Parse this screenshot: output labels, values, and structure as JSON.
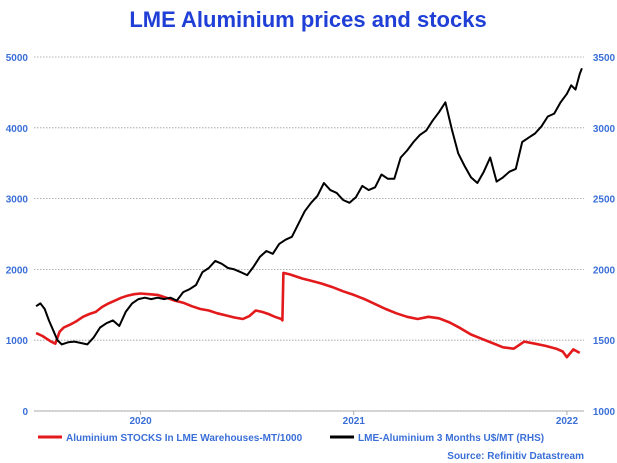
{
  "colors": {
    "title": "#1f3fd6",
    "axis_text": "#3a6fd8",
    "stocks": "#e31a1c",
    "price": "#000000",
    "grid": "#9a9a9a",
    "background": "#ffffff"
  },
  "chart_data": {
    "type": "line",
    "title": "LME Aluminium prices and stocks",
    "source": "Source: Refinitiv Datastream",
    "xlabel": "",
    "x_ticks": [
      {
        "label": "2020",
        "value": 2020.0
      },
      {
        "label": "2021",
        "value": 2021.0
      },
      {
        "label": "2022",
        "value": 2022.0
      }
    ],
    "xlim": [
      2019.5,
      2022.08
    ],
    "left_axis": {
      "label": "",
      "ylim": [
        0,
        5000
      ],
      "ticks": [
        0,
        1000,
        2000,
        3000,
        4000,
        5000
      ]
    },
    "right_axis": {
      "label": "",
      "ylim": [
        1000,
        3500
      ],
      "ticks": [
        1000,
        1500,
        2000,
        2500,
        3000,
        3500
      ]
    },
    "grid": true,
    "legend_position": "bottom",
    "series": [
      {
        "name": "Aluminium STOCKS In LME Warehouses-MT/1000",
        "axis": "left",
        "color": "#e31a1c",
        "x": [
          2019.51,
          2019.54,
          2019.56,
          2019.58,
          2019.6,
          2019.62,
          2019.64,
          2019.67,
          2019.7,
          2019.73,
          2019.76,
          2019.79,
          2019.82,
          2019.85,
          2019.88,
          2019.91,
          2019.94,
          2019.97,
          2020.0,
          2020.04,
          2020.08,
          2020.12,
          2020.16,
          2020.2,
          2020.24,
          2020.28,
          2020.32,
          2020.36,
          2020.4,
          2020.44,
          2020.48,
          2020.51,
          2020.54,
          2020.57,
          2020.6,
          2020.63,
          2020.66,
          2020.665,
          2020.67,
          2020.7,
          2020.73,
          2020.76,
          2020.8,
          2020.85,
          2020.9,
          2020.95,
          2021.0,
          2021.05,
          2021.1,
          2021.15,
          2021.2,
          2021.25,
          2021.3,
          2021.35,
          2021.4,
          2021.45,
          2021.5,
          2021.55,
          2021.6,
          2021.65,
          2021.7,
          2021.75,
          2021.8,
          2021.85,
          2021.9,
          2021.95,
          2021.98,
          2022.0,
          2022.03,
          2022.06
        ],
        "values": [
          1100,
          1060,
          1020,
          980,
          950,
          1120,
          1180,
          1220,
          1270,
          1330,
          1370,
          1400,
          1470,
          1520,
          1560,
          1600,
          1630,
          1650,
          1660,
          1650,
          1640,
          1600,
          1560,
          1530,
          1480,
          1440,
          1420,
          1380,
          1350,
          1320,
          1300,
          1340,
          1420,
          1400,
          1370,
          1330,
          1300,
          1280,
          1950,
          1930,
          1900,
          1870,
          1840,
          1800,
          1750,
          1690,
          1640,
          1580,
          1510,
          1440,
          1380,
          1330,
          1300,
          1330,
          1310,
          1250,
          1170,
          1080,
          1020,
          960,
          900,
          880,
          980,
          950,
          920,
          880,
          840,
          760,
          870,
          820
        ]
      },
      {
        "name": "LME-Aluminium 3 Months U$/MT (RHS)",
        "axis": "right",
        "color": "#000000",
        "x": [
          2019.51,
          2019.53,
          2019.55,
          2019.57,
          2019.59,
          2019.61,
          2019.63,
          2019.66,
          2019.69,
          2019.72,
          2019.75,
          2019.78,
          2019.81,
          2019.84,
          2019.87,
          2019.9,
          2019.93,
          2019.96,
          2019.99,
          2020.02,
          2020.05,
          2020.08,
          2020.11,
          2020.14,
          2020.17,
          2020.2,
          2020.23,
          2020.26,
          2020.29,
          2020.32,
          2020.35,
          2020.38,
          2020.41,
          2020.44,
          2020.47,
          2020.5,
          2020.53,
          2020.56,
          2020.59,
          2020.62,
          2020.65,
          2020.68,
          2020.71,
          2020.74,
          2020.77,
          2020.8,
          2020.83,
          2020.86,
          2020.89,
          2020.92,
          2020.95,
          2020.98,
          2021.01,
          2021.04,
          2021.07,
          2021.1,
          2021.13,
          2021.16,
          2021.19,
          2021.22,
          2021.25,
          2021.28,
          2021.31,
          2021.34,
          2021.37,
          2021.4,
          2021.43,
          2021.46,
          2021.49,
          2021.52,
          2021.55,
          2021.58,
          2021.61,
          2021.64,
          2021.67,
          2021.7,
          2021.73,
          2021.76,
          2021.79,
          2021.82,
          2021.85,
          2021.88,
          2021.91,
          2021.94,
          2021.97,
          2022.0,
          2022.02,
          2022.04,
          2022.06,
          2022.07
        ],
        "values": [
          1740,
          1760,
          1720,
          1640,
          1570,
          1500,
          1470,
          1485,
          1490,
          1480,
          1470,
          1520,
          1590,
          1620,
          1640,
          1600,
          1700,
          1760,
          1790,
          1800,
          1790,
          1800,
          1790,
          1800,
          1780,
          1840,
          1860,
          1890,
          1980,
          2010,
          2060,
          2040,
          2010,
          2000,
          1980,
          1960,
          2020,
          2090,
          2130,
          2110,
          2180,
          2210,
          2230,
          2320,
          2410,
          2470,
          2520,
          2610,
          2560,
          2540,
          2490,
          2470,
          2510,
          2590,
          2560,
          2580,
          2670,
          2640,
          2640,
          2790,
          2840,
          2900,
          2950,
          2980,
          3050,
          3110,
          3180,
          2990,
          2820,
          2730,
          2650,
          2610,
          2690,
          2790,
          2620,
          2650,
          2690,
          2710,
          2900,
          2930,
          2960,
          3010,
          3080,
          3100,
          3180,
          3240,
          3300,
          3270,
          3380,
          3420
        ]
      }
    ]
  }
}
